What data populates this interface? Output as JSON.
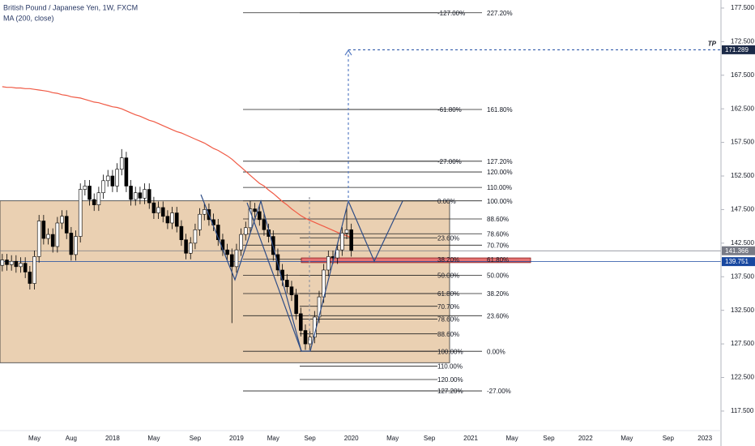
{
  "chart_data": {
    "type": "candlestick",
    "title": "British Pound / Japanese Yen, 1W, FXCM",
    "categories": [
      null,
      null,
      null,
      null,
      null,
      null,
      null,
      "May",
      null,
      null,
      null,
      null,
      null,
      null,
      null,
      "Aug",
      null,
      null,
      null,
      null,
      null,
      null,
      null,
      null,
      "2018",
      null,
      null,
      null,
      null,
      null,
      null,
      null,
      null,
      "May",
      null,
      null,
      null,
      null,
      null,
      null,
      null,
      null,
      "Sep",
      null,
      null,
      null,
      null,
      null,
      null,
      null,
      null,
      "2019",
      null,
      null,
      null,
      null,
      null,
      null,
      null,
      "May",
      null,
      null,
      null,
      null,
      null,
      null,
      null,
      "Sep",
      null,
      null,
      null,
      null,
      null,
      null,
      null,
      null,
      "2020",
      null,
      null,
      null,
      null,
      null,
      null,
      null,
      null,
      "May",
      null,
      null,
      null,
      null,
      null,
      null,
      null,
      "Sep",
      null,
      null,
      null,
      null,
      null,
      null,
      null,
      null,
      "2021",
      null,
      null,
      null,
      null,
      null,
      null,
      null,
      null,
      "May",
      null,
      null,
      null,
      null,
      null,
      null,
      null,
      "Sep",
      null,
      null,
      null,
      null,
      null,
      null,
      null,
      "2022",
      null,
      null,
      null,
      null,
      null,
      null,
      null,
      null,
      "May",
      null,
      null,
      null,
      null,
      null,
      null,
      null,
      null,
      "Sep",
      null,
      null,
      null,
      null,
      null,
      null,
      null,
      "2023",
      null,
      null,
      null
    ],
    "open": [
      139.2,
      140.0,
      139.3,
      139.8,
      139.0,
      139.5,
      138.2,
      136.5,
      140.5,
      145.8,
      143.2,
      143.8,
      142.0,
      145.5,
      146.5,
      144.0,
      140.8,
      143.5,
      150.5,
      151.0,
      149.0,
      148.2,
      150.0,
      151.8,
      152.5,
      151.0,
      153.5,
      155.2,
      151.0,
      149.0,
      150.0,
      149.2,
      150.5,
      148.5,
      147.0,
      147.8,
      146.5,
      145.5,
      147.0,
      145.0,
      143.0,
      141.0,
      142.5,
      144.5,
      146.8,
      147.5,
      146.0,
      145.2,
      143.0,
      141.5,
      140.8,
      139.0,
      141.5,
      143.8,
      144.8,
      147.6,
      147.2,
      146.0,
      144.5,
      143.5,
      140.8,
      138.5,
      137.0,
      136.0,
      134.8,
      132.0,
      129.5,
      127.5,
      128.5,
      131.5,
      134.5,
      138.5,
      140.5,
      140.3,
      141.5,
      144.0,
      144.5,
      null,
      null,
      null,
      null,
      null,
      null,
      null,
      null,
      null,
      null,
      null,
      null,
      null,
      null,
      null,
      null,
      null,
      null,
      null,
      null,
      null,
      null,
      null,
      null,
      null,
      null,
      null,
      null,
      null,
      null,
      null,
      null,
      null,
      null,
      null,
      null,
      null,
      null,
      null,
      null,
      null,
      null,
      null,
      null,
      null,
      null,
      null,
      null,
      null,
      null,
      null,
      null,
      null,
      null,
      null,
      null,
      null,
      null,
      null,
      null,
      null,
      null,
      null,
      null,
      null,
      null,
      null,
      null,
      null,
      null,
      null,
      null,
      null,
      null,
      null,
      null,
      null,
      null,
      null,
      null
    ],
    "high": [
      140.9,
      140.9,
      140.7,
      140.7,
      140.4,
      140.4,
      139.1,
      141.4,
      146.7,
      146.7,
      144.7,
      144.7,
      146.4,
      147.4,
      147.4,
      144.9,
      144.4,
      151.4,
      151.9,
      151.9,
      149.9,
      150.9,
      152.7,
      153.4,
      153.4,
      154.4,
      156.5,
      156.1,
      151.9,
      150.9,
      150.9,
      151.4,
      151.4,
      149.4,
      148.7,
      148.7,
      147.4,
      147.9,
      147.9,
      145.9,
      143.9,
      143.4,
      145.4,
      147.7,
      148.4,
      148.4,
      146.9,
      146.1,
      143.9,
      142.4,
      141.7,
      142.4,
      144.7,
      145.7,
      148.8,
      148.5,
      148.1,
      146.9,
      145.4,
      144.4,
      141.7,
      139.4,
      137.9,
      136.9,
      135.7,
      132.9,
      130.4,
      129.4,
      132.4,
      135.4,
      139.4,
      141.4,
      141.4,
      142.4,
      144.9,
      147.8,
      145.4,
      null,
      null,
      null,
      null,
      null,
      null,
      null,
      null,
      null,
      null,
      null,
      null,
      null,
      null,
      null,
      null,
      null,
      null,
      null,
      null,
      null,
      null,
      null,
      null,
      null,
      null,
      null,
      null,
      null,
      null,
      null,
      null,
      null,
      null,
      null,
      null,
      null,
      null,
      null,
      null,
      null,
      null,
      null,
      null,
      null,
      null,
      null,
      null,
      null,
      null,
      null,
      null,
      null,
      null,
      null,
      null,
      null,
      null,
      null,
      null,
      null,
      null,
      null,
      null,
      null,
      null,
      null,
      null,
      null,
      null,
      null,
      null,
      null,
      null,
      null,
      null,
      null,
      null,
      null,
      null
    ],
    "low": [
      138.3,
      138.4,
      138.4,
      138.1,
      138.1,
      137.3,
      135.6,
      135.6,
      139.6,
      142.3,
      142.3,
      141.1,
      141.1,
      144.6,
      143.1,
      139.9,
      139.9,
      142.6,
      149.6,
      148.1,
      147.3,
      147.3,
      149.1,
      150.9,
      150.1,
      150.1,
      152.6,
      150.1,
      148.1,
      148.1,
      148.3,
      148.3,
      147.6,
      146.1,
      146.1,
      145.6,
      144.6,
      144.6,
      144.1,
      142.1,
      140.1,
      140.1,
      141.6,
      143.6,
      145.9,
      145.1,
      144.3,
      142.1,
      140.6,
      139.9,
      130.6,
      138.1,
      140.6,
      142.9,
      143.9,
      146.3,
      145.1,
      143.6,
      142.6,
      139.9,
      137.6,
      136.1,
      135.1,
      133.9,
      131.1,
      128.6,
      126.6,
      126.6,
      127.6,
      130.6,
      133.6,
      137.6,
      139.4,
      139.4,
      140.6,
      143.1,
      140.5,
      null,
      null,
      null,
      null,
      null,
      null,
      null,
      null,
      null,
      null,
      null,
      null,
      null,
      null,
      null,
      null,
      null,
      null,
      null,
      null,
      null,
      null,
      null,
      null,
      null,
      null,
      null,
      null,
      null,
      null,
      null,
      null,
      null,
      null,
      null,
      null,
      null,
      null,
      null,
      null,
      null,
      null,
      null,
      null,
      null,
      null,
      null,
      null,
      null,
      null,
      null,
      null,
      null,
      null,
      null,
      null,
      null,
      null,
      null,
      null,
      null,
      null,
      null,
      null,
      null,
      null,
      null,
      null,
      null,
      null,
      null,
      null,
      null,
      null,
      null,
      null,
      null,
      null,
      null,
      null
    ],
    "close": [
      140.0,
      139.3,
      139.8,
      139.0,
      139.5,
      138.2,
      136.5,
      140.5,
      145.8,
      143.2,
      143.8,
      142.0,
      145.5,
      146.5,
      144.0,
      140.8,
      143.5,
      150.5,
      151.0,
      149.0,
      148.2,
      150.0,
      151.8,
      152.5,
      151.0,
      153.5,
      155.2,
      151.0,
      149.0,
      150.0,
      149.2,
      150.5,
      148.5,
      147.0,
      147.8,
      146.5,
      145.5,
      147.0,
      145.0,
      143.0,
      141.0,
      142.5,
      144.5,
      146.8,
      147.5,
      146.0,
      145.2,
      143.0,
      141.5,
      140.8,
      139.0,
      141.5,
      143.8,
      144.8,
      147.6,
      147.2,
      146.0,
      144.5,
      143.5,
      140.8,
      138.5,
      137.0,
      136.0,
      134.8,
      132.0,
      129.5,
      127.5,
      128.5,
      131.5,
      134.5,
      138.5,
      140.5,
      140.3,
      141.5,
      144.0,
      144.5,
      141.4,
      null,
      null,
      null,
      null,
      null,
      null,
      null,
      null,
      null,
      null,
      null,
      null,
      null,
      null,
      null,
      null,
      null,
      null,
      null,
      null,
      null,
      null,
      null,
      null,
      null,
      null,
      null,
      null,
      null,
      null,
      null,
      null,
      null,
      null,
      null,
      null,
      null,
      null,
      null,
      null,
      null,
      null,
      null,
      null,
      null,
      null,
      null,
      null,
      null,
      null,
      null,
      null,
      null,
      null,
      null,
      null,
      null,
      null,
      null,
      null,
      null,
      null,
      null,
      null,
      null,
      null,
      null,
      null,
      null,
      null,
      null,
      null,
      null,
      null,
      null,
      null,
      null,
      null,
      null,
      null
    ],
    "up_color": "#ffffff",
    "down_color": "#000000",
    "ma": {
      "name": "MA (200, close)",
      "color": "#f05a45",
      "values": [
        165.8,
        165.7,
        165.7,
        165.6,
        165.6,
        165.5,
        165.5,
        165.4,
        165.3,
        165.2,
        165.1,
        164.9,
        164.8,
        164.6,
        164.5,
        164.3,
        164.2,
        164.1,
        163.9,
        163.7,
        163.5,
        163.4,
        163.2,
        163.0,
        162.8,
        162.7,
        162.5,
        162.2,
        161.9,
        161.6,
        161.4,
        161.1,
        160.8,
        160.6,
        160.3,
        160.0,
        159.7,
        159.4,
        159.1,
        158.9,
        158.6,
        158.3,
        158.0,
        157.7,
        157.4,
        157.0,
        156.6,
        156.3,
        155.9,
        155.5,
        155.0,
        154.4,
        153.8,
        153.2,
        152.6,
        152.0,
        151.4,
        151.0,
        150.4,
        149.9,
        149.3,
        148.7,
        148.2,
        147.6,
        147.1,
        146.6,
        146.2,
        145.9,
        145.6,
        145.3,
        145.0,
        144.7,
        144.4,
        144.1,
        143.8,
        143.6,
        143.3,
        null,
        null,
        null,
        null,
        null,
        null,
        null,
        null,
        null,
        null,
        null,
        null,
        null,
        null,
        null,
        null,
        null,
        null,
        null,
        null,
        null,
        null,
        null,
        null,
        null,
        null,
        null,
        null,
        null,
        null,
        null,
        null,
        null,
        null,
        null,
        null,
        null,
        null,
        null,
        null,
        null,
        null,
        null,
        null,
        null,
        null,
        null,
        null,
        null,
        null,
        null,
        null,
        null,
        null,
        null,
        null,
        null,
        null,
        null,
        null,
        null,
        null,
        null,
        null,
        null,
        null,
        null,
        null,
        null,
        null,
        null,
        null,
        null,
        null,
        null,
        null,
        null,
        null,
        null,
        null
      ]
    },
    "ylim": [
      112.3,
      178.7
    ],
    "yticks": [
      {
        "value": 177.5,
        "label": "177.500"
      },
      {
        "value": 172.5,
        "label": "172.500"
      },
      {
        "value": 167.5,
        "label": "167.500"
      },
      {
        "value": 162.5,
        "label": "162.500"
      },
      {
        "value": 157.5,
        "label": "157.500"
      },
      {
        "value": 152.5,
        "label": "152.500"
      },
      {
        "value": 147.5,
        "label": "147.500"
      },
      {
        "value": 142.5,
        "label": "142.500"
      },
      {
        "value": 137.5,
        "label": "137.500"
      },
      {
        "value": 132.5,
        "label": "132.500"
      },
      {
        "value": 127.5,
        "label": "127.500"
      },
      {
        "value": 122.5,
        "label": "122.500"
      },
      {
        "value": 117.5,
        "label": "117.500"
      }
    ],
    "fib_levels_a": [
      {
        "label": "-127.00%",
        "value": 176.8
      },
      {
        "label": "-61.80%",
        "value": 162.4
      },
      {
        "label": "-27.00%",
        "value": 154.7
      },
      {
        "label": "0.00%",
        "value": 148.8
      },
      {
        "label": "23.60%",
        "value": 143.3
      },
      {
        "label": "38.20%",
        "value": 140.1
      },
      {
        "label": "50.00%",
        "value": 137.7
      },
      {
        "label": "61.80%",
        "value": 135.0
      },
      {
        "label": "70.70%",
        "value": 133.1
      },
      {
        "label": "78.60%",
        "value": 131.2
      },
      {
        "label": "88.60%",
        "value": 129.0
      },
      {
        "label": "100.00%",
        "value": 126.4
      },
      {
        "label": "110.00%",
        "value": 124.2
      },
      {
        "label": "120.00%",
        "value": 122.2
      },
      {
        "label": "127.20%",
        "value": 120.5
      }
    ],
    "fib_levels_b": [
      {
        "label": "227.20%",
        "value": 176.8
      },
      {
        "label": "161.80%",
        "value": 162.4
      },
      {
        "label": "127.20%",
        "value": 154.7
      },
      {
        "label": "120.00%",
        "value": 153.1
      },
      {
        "label": "110.00%",
        "value": 150.8
      },
      {
        "label": "100.00%",
        "value": 148.8
      },
      {
        "label": "88.60%",
        "value": 146.1
      },
      {
        "label": "78.60%",
        "value": 143.9
      },
      {
        "label": "70.70%",
        "value": 142.2
      },
      {
        "label": "61.80%",
        "value": 140.1
      },
      {
        "label": "50.00%",
        "value": 137.7
      },
      {
        "label": "38.20%",
        "value": 135.0
      },
      {
        "label": "23.60%",
        "value": 131.7
      },
      {
        "label": "0.00%",
        "value": 126.4
      },
      {
        "label": "-27.00%",
        "value": 120.5
      }
    ],
    "range_box": {
      "top": 148.8,
      "bottom": 124.7,
      "color": "#e6c8a4"
    },
    "zone": {
      "top": 140.3,
      "bottom": 139.6,
      "color": "#e57373"
    },
    "price_lines": [
      {
        "value": 141.366,
        "color": "#787b86"
      },
      {
        "value": 139.751,
        "color": "#1848a0"
      }
    ],
    "target": {
      "label": "TP",
      "value": 171.289,
      "color": "#1848a0"
    }
  }
}
